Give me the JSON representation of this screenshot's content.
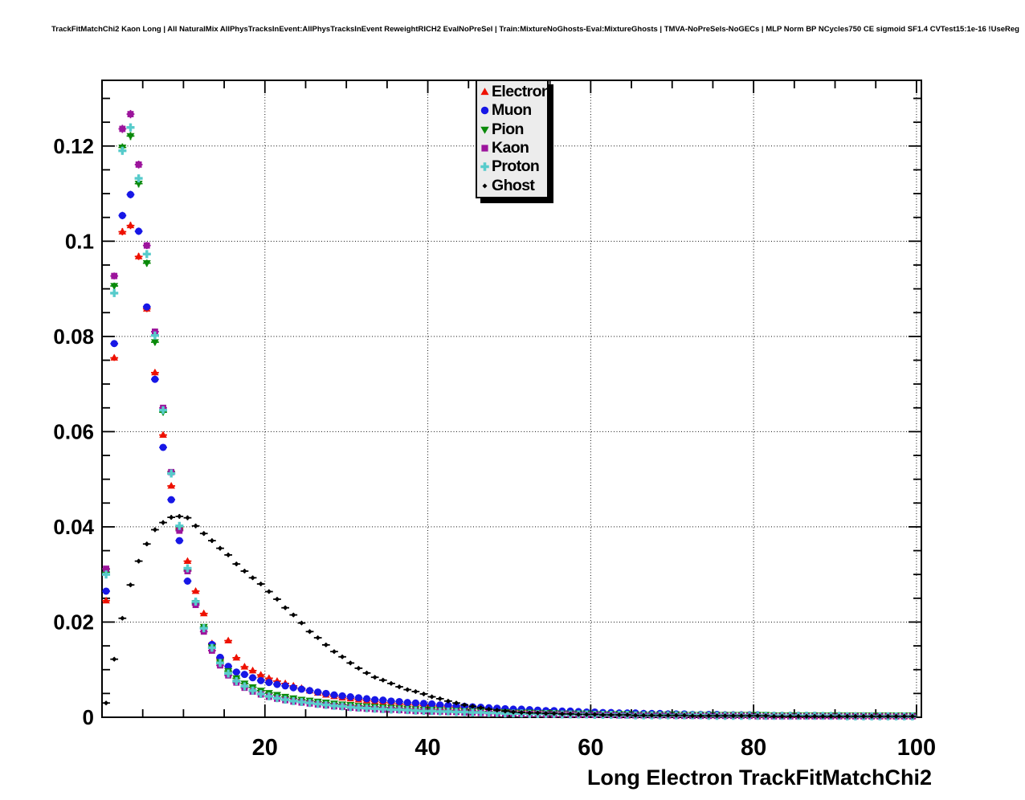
{
  "header": {
    "title": "TrackFitMatchChi2 Kaon Long | All NaturalMix AllPhysTracksInEvent:AllPhysTracksInEvent ReweightRICH2 EvalNoPreSel | Train:MixtureNoGhosts-Eval:MixtureGhosts | TMVA-NoPreSels-NoGECs | MLP Norm BP NCycles750 CE sigmoid SF1.4 CVTest15:1e-16 !UseReg"
  },
  "chart_data": {
    "type": "scatter",
    "title": "",
    "xlabel": "Long Electron TrackFitMatchChi2",
    "ylabel": "",
    "xlim": [
      0,
      100.6
    ],
    "ylim": [
      0,
      0.1338
    ],
    "grid": "dotted",
    "legend_position": "top-center",
    "x_major_ticks": [
      20,
      40,
      60,
      80,
      100
    ],
    "x_tick_labels": [
      "20",
      "40",
      "60",
      "80",
      "100"
    ],
    "x_minor_step": 5,
    "y_major_ticks": [
      0,
      0.02,
      0.04,
      0.06,
      0.08,
      0.1,
      0.12
    ],
    "y_tick_labels": [
      "0",
      "0.02",
      "0.04",
      "0.06",
      "0.08",
      "0.1",
      "0.12"
    ],
    "y_minor_step": 0.005,
    "x_start": 0.5,
    "x_step": 1,
    "bins": 100,
    "series": [
      {
        "name": "Electron",
        "marker": "triangle-up",
        "color": "#ee1100",
        "values": [
          0.0245,
          0.0755,
          0.102,
          0.1033,
          0.0968,
          0.0858,
          0.0724,
          0.0593,
          0.0486,
          0.0397,
          0.0328,
          0.0265,
          0.0218,
          0.0155,
          0.0124,
          0.0161,
          0.0125,
          0.0106,
          0.0098,
          0.0089,
          0.0082,
          0.0076,
          0.0071,
          0.0066,
          0.0061,
          0.0056,
          0.0051,
          0.0047,
          0.0044,
          0.0041,
          0.0039,
          0.0037,
          0.0035,
          0.0033,
          0.0031,
          0.003,
          0.0028,
          0.0027,
          0.0026,
          0.0025,
          0.0024,
          0.0023,
          0.0022,
          0.0021,
          0.002,
          0.0019,
          0.0018,
          0.0017,
          0.0016,
          0.0016,
          0.0015,
          0.0014,
          0.0014,
          0.0013,
          0.0013,
          0.0012,
          0.0012,
          0.0011,
          0.0011,
          0.001,
          0.001,
          0.0009,
          0.0009,
          0.0009,
          0.0008,
          0.0008,
          0.0008,
          0.0007,
          0.0007,
          0.0007,
          0.0006,
          0.0006,
          0.0006,
          0.0006,
          0.0005,
          0.0005,
          0.0005,
          0.0005,
          0.0005,
          0.0004,
          0.0004,
          0.0004,
          0.0004,
          0.0004,
          0.0004,
          0.0004,
          0.0003,
          0.0003,
          0.0003,
          0.0003,
          0.0003,
          0.0003,
          0.0003,
          0.0003,
          0.0003,
          0.0002,
          0.0002,
          0.0002,
          0.0002,
          0.0002
        ]
      },
      {
        "name": "Muon",
        "marker": "circle",
        "color": "#1717e6",
        "values": [
          0.0265,
          0.0785,
          0.1054,
          0.1098,
          0.1021,
          0.0862,
          0.071,
          0.0567,
          0.0457,
          0.0371,
          0.0286,
          0.024,
          0.0187,
          0.0153,
          0.0126,
          0.0107,
          0.0095,
          0.009,
          0.0083,
          0.0077,
          0.0073,
          0.0069,
          0.0066,
          0.0062,
          0.0059,
          0.0056,
          0.0053,
          0.005,
          0.0047,
          0.0045,
          0.0043,
          0.0041,
          0.0039,
          0.0037,
          0.0036,
          0.0034,
          0.0033,
          0.0031,
          0.003,
          0.0029,
          0.0028,
          0.0026,
          0.0025,
          0.0024,
          0.0023,
          0.0022,
          0.0021,
          0.002,
          0.0019,
          0.0018,
          0.0017,
          0.0017,
          0.0016,
          0.0015,
          0.0014,
          0.0014,
          0.0013,
          0.0013,
          0.0012,
          0.0011,
          0.0011,
          0.001,
          0.001,
          0.0009,
          0.0009,
          0.0009,
          0.0008,
          0.0008,
          0.0008,
          0.0007,
          0.0007,
          0.0007,
          0.0006,
          0.0006,
          0.0006,
          0.0006,
          0.0005,
          0.0005,
          0.0005,
          0.0005,
          0.0005,
          0.0004,
          0.0004,
          0.0004,
          0.0004,
          0.0004,
          0.0004,
          0.0004,
          0.0003,
          0.0003,
          0.0003,
          0.0003,
          0.0003,
          0.0003,
          0.0003,
          0.0003,
          0.0003,
          0.0002,
          0.0002,
          0.0002
        ]
      },
      {
        "name": "Pion",
        "marker": "triangle-down",
        "color": "#0a8a0a",
        "values": [
          0.0305,
          0.0906,
          0.1197,
          0.1221,
          0.1121,
          0.0954,
          0.0788,
          0.0641,
          0.0512,
          0.0394,
          0.0309,
          0.024,
          0.019,
          0.0147,
          0.0116,
          0.0097,
          0.0082,
          0.0071,
          0.0063,
          0.0056,
          0.0051,
          0.0047,
          0.0043,
          0.004,
          0.0037,
          0.0035,
          0.0033,
          0.0031,
          0.0029,
          0.0027,
          0.0026,
          0.0024,
          0.0023,
          0.0022,
          0.0021,
          0.002,
          0.0019,
          0.0018,
          0.0017,
          0.0016,
          0.0016,
          0.0015,
          0.0014,
          0.0014,
          0.0013,
          0.0013,
          0.0012,
          0.0012,
          0.0011,
          0.0011,
          0.001,
          0.001,
          0.001,
          0.0009,
          0.0009,
          0.0009,
          0.0008,
          0.0008,
          0.0008,
          0.0008,
          0.0007,
          0.0007,
          0.0007,
          0.0007,
          0.0007,
          0.0006,
          0.0006,
          0.0006,
          0.0006,
          0.0006,
          0.0006,
          0.0005,
          0.0005,
          0.0005,
          0.0005,
          0.0005,
          0.0005,
          0.0005,
          0.0005,
          0.0005,
          0.0005,
          0.0005,
          0.0004,
          0.0004,
          0.0004,
          0.0004,
          0.0004,
          0.0004,
          0.0004,
          0.0004,
          0.0004,
          0.0004,
          0.0004,
          0.0004,
          0.0004,
          0.0004,
          0.0004,
          0.0004,
          0.0004,
          0.0004
        ]
      },
      {
        "name": "Kaon",
        "marker": "square",
        "color": "#9c149c",
        "values": [
          0.0312,
          0.0927,
          0.1236,
          0.1267,
          0.1161,
          0.0991,
          0.081,
          0.065,
          0.0515,
          0.0392,
          0.0307,
          0.0236,
          0.018,
          0.014,
          0.0109,
          0.0088,
          0.0073,
          0.0062,
          0.0054,
          0.0048,
          0.0043,
          0.0039,
          0.0036,
          0.0033,
          0.0031,
          0.0029,
          0.0027,
          0.0025,
          0.0023,
          0.0022,
          0.002,
          0.0019,
          0.0018,
          0.0017,
          0.0016,
          0.0016,
          0.0015,
          0.0014,
          0.0013,
          0.0013,
          0.0012,
          0.0012,
          0.0011,
          0.0011,
          0.001,
          0.001,
          0.0009,
          0.0009,
          0.0008,
          0.0008,
          0.0008,
          0.0007,
          0.0007,
          0.0007,
          0.0006,
          0.0006,
          0.0006,
          0.0006,
          0.0005,
          0.0005,
          0.0005,
          0.0005,
          0.0005,
          0.0004,
          0.0004,
          0.0004,
          0.0004,
          0.0004,
          0.0004,
          0.0004,
          0.0003,
          0.0003,
          0.0003,
          0.0003,
          0.0003,
          0.0003,
          0.0003,
          0.0003,
          0.0003,
          0.0003,
          0.0002,
          0.0002,
          0.0002,
          0.0002,
          0.0002,
          0.0002,
          0.0002,
          0.0002,
          0.0002,
          0.0002,
          0.0002,
          0.0002,
          0.0002,
          0.0002,
          0.0002,
          0.0002,
          0.0002,
          0.0002,
          0.0002,
          0.0002
        ]
      },
      {
        "name": "Proton",
        "marker": "cross",
        "color": "#57cbcb",
        "values": [
          0.03,
          0.0891,
          0.119,
          0.1239,
          0.1132,
          0.0973,
          0.0802,
          0.0645,
          0.0512,
          0.0402,
          0.0313,
          0.0243,
          0.0187,
          0.0146,
          0.0114,
          0.0092,
          0.0076,
          0.0065,
          0.0056,
          0.0049,
          0.0044,
          0.004,
          0.0037,
          0.0034,
          0.0032,
          0.003,
          0.0028,
          0.0026,
          0.0024,
          0.0023,
          0.0021,
          0.002,
          0.0019,
          0.0018,
          0.0017,
          0.0016,
          0.0016,
          0.0015,
          0.0014,
          0.0013,
          0.0013,
          0.0012,
          0.0012,
          0.0011,
          0.0011,
          0.001,
          0.001,
          0.0009,
          0.0009,
          0.0008,
          0.0008,
          0.0008,
          0.0007,
          0.0007,
          0.0007,
          0.0007,
          0.0006,
          0.0006,
          0.0006,
          0.0006,
          0.0005,
          0.0005,
          0.0005,
          0.0005,
          0.0005,
          0.0004,
          0.0004,
          0.0004,
          0.0004,
          0.0004,
          0.0004,
          0.0004,
          0.0004,
          0.0004,
          0.0003,
          0.0003,
          0.0003,
          0.0003,
          0.0003,
          0.0003,
          0.0003,
          0.0003,
          0.0003,
          0.0003,
          0.0003,
          0.0003,
          0.0003,
          0.0003,
          0.0003,
          0.0003,
          0.0003,
          0.0002,
          0.0002,
          0.0002,
          0.0002,
          0.0002,
          0.0002,
          0.0002,
          0.0002,
          0.0002
        ]
      },
      {
        "name": "Ghost",
        "marker": "diamond",
        "color": "#000000",
        "values": [
          0.003,
          0.0122,
          0.0208,
          0.0278,
          0.0328,
          0.0364,
          0.0394,
          0.0409,
          0.042,
          0.0422,
          0.0419,
          0.0402,
          0.0386,
          0.0371,
          0.0355,
          0.0341,
          0.0322,
          0.0307,
          0.0293,
          0.028,
          0.0264,
          0.0248,
          0.023,
          0.0215,
          0.0198,
          0.018,
          0.0167,
          0.0152,
          0.0138,
          0.0127,
          0.0114,
          0.0103,
          0.0093,
          0.0084,
          0.0078,
          0.0071,
          0.0064,
          0.0058,
          0.0054,
          0.0049,
          0.0043,
          0.0039,
          0.0034,
          0.003,
          0.0026,
          0.0023,
          0.002,
          0.0017,
          0.0015,
          0.0013,
          0.0011,
          0.001,
          0.0009,
          0.0009,
          0.0008,
          0.0008,
          0.0007,
          0.0007,
          0.0006,
          0.0006,
          0.0006,
          0.0005,
          0.0005,
          0.0005,
          0.0005,
          0.0004,
          0.0004,
          0.0004,
          0.0004,
          0.0004,
          0.0004,
          0.0004,
          0.0003,
          0.0003,
          0.0003,
          0.0003,
          0.0003,
          0.0003,
          0.0003,
          0.0003,
          0.0003,
          0.0003,
          0.0002,
          0.0002,
          0.0002,
          0.0002,
          0.0002,
          0.0002,
          0.0002,
          0.0002,
          0.0002,
          0.0002,
          0.0002,
          0.0002,
          0.0002,
          0.0002,
          0.0002,
          0.0002,
          0.0002,
          0.0002
        ]
      }
    ]
  }
}
